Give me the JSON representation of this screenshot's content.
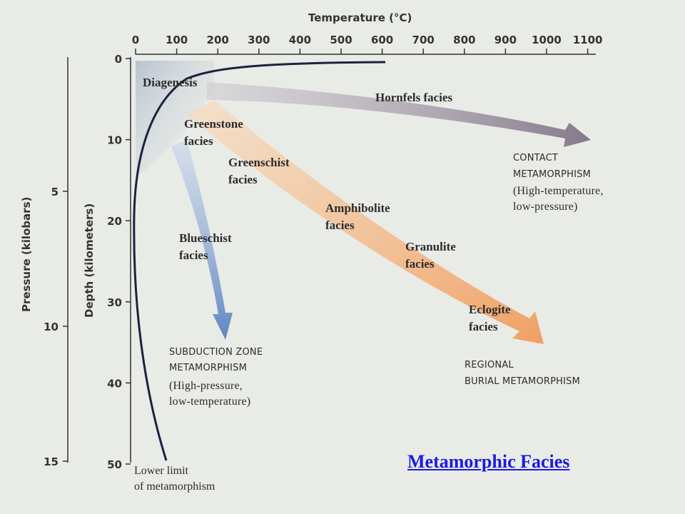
{
  "title": "Temperature (°C)",
  "temperature_ticks": [
    "0",
    "100",
    "200",
    "300",
    "400",
    "500",
    "600",
    "700",
    "800",
    "900",
    "1000",
    "1100"
  ],
  "depth_axis_title": "Depth (kilometers)",
  "depth_ticks": [
    "0",
    "10",
    "20",
    "30",
    "40",
    "50"
  ],
  "pressure_axis_title": "Pressure (kilobars)",
  "pressure_ticks": [
    "5",
    "10",
    "15"
  ],
  "facies": {
    "diagenesis": "Diagenesis",
    "hornfels": "Hornfels facies",
    "greenstone": [
      "Greenstone",
      "facies"
    ],
    "greenschist": [
      "Greenschist",
      "facies"
    ],
    "amphibolite": [
      "Amphibolite",
      "facies"
    ],
    "granulite": [
      "Granulite",
      "facies"
    ],
    "eclogite": [
      "Eclogite",
      "facies"
    ],
    "blueschist": [
      "Blueschist",
      "facies"
    ]
  },
  "regimes": {
    "contact": [
      "CONTACT",
      "METAMORPHISM",
      "(High-temperature,",
      "low-pressure)"
    ],
    "subduction": [
      "SUBDUCTION ZONE",
      "METAMORPHISM",
      "(High-pressure,",
      "low-temperature)"
    ],
    "regional": [
      "REGIONAL",
      "BURIAL METAMORPHISM"
    ]
  },
  "lower_limit": [
    "Lower limit",
    "of metamorphism"
  ],
  "caption": "Metamorphic Facies",
  "colors": {
    "hornfels_arrow": "#8e8496",
    "regional_arrow": "#f2ad72",
    "blueschist_arrow": "#6f94c9",
    "limit_curve": "#1c2240",
    "link": "#1a1ae6",
    "background": "#e9ebe7"
  }
}
